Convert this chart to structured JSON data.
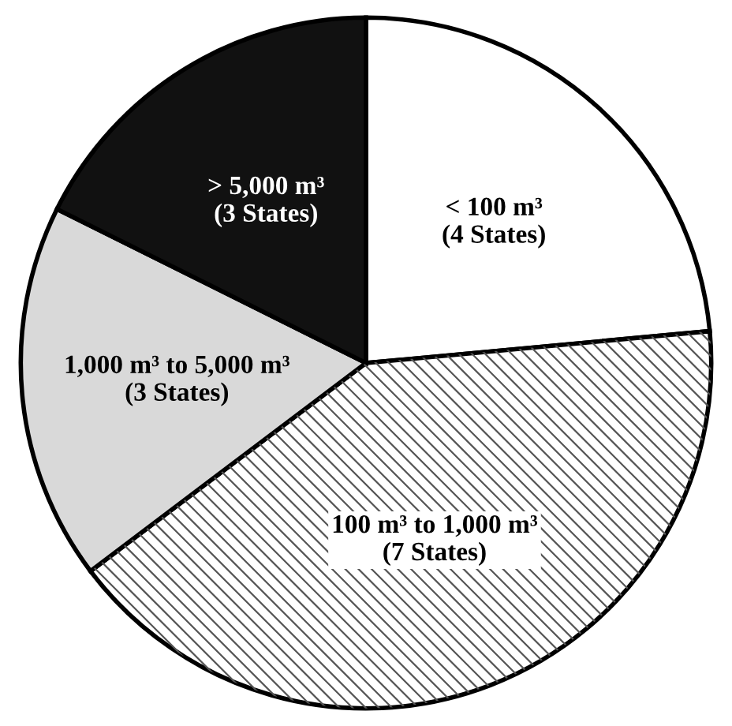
{
  "chart_data": {
    "type": "pie",
    "categories": [
      "< 100 m³",
      "100 m³ to 1,000 m³",
      "1,000 m³ to 5,000 m³",
      "> 5,000 m³"
    ],
    "values": [
      4,
      7,
      3,
      3
    ],
    "value_labels": [
      "(4 States)",
      "(7 States)",
      "(3 States)",
      "(3 States)"
    ],
    "colors": [
      "#ffffff",
      "#ffffff",
      "#d9d9d9",
      "#111111"
    ],
    "legend": false
  }
}
